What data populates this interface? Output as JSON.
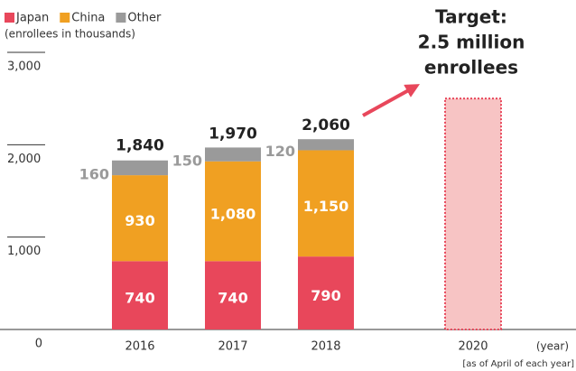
{
  "chart_data": {
    "type": "bar",
    "stacked": true,
    "unit_label": "(enrollees in thousands)",
    "x_label": "(year)",
    "footnote": "[as of April of each year]",
    "categories": [
      "2016",
      "2017",
      "2018",
      "2020"
    ],
    "series": [
      {
        "name": "Japan",
        "color": "#e8475b",
        "values": [
          740,
          740,
          790,
          null
        ]
      },
      {
        "name": "China",
        "color": "#f0a022",
        "values": [
          930,
          1080,
          1150,
          null
        ],
        "value_labels": [
          "930",
          "1,080",
          "1,150",
          null
        ]
      },
      {
        "name": "Other",
        "color": "#9a9a9a",
        "values": [
          160,
          150,
          120,
          null
        ]
      }
    ],
    "totals": {
      "values": [
        1840,
        1970,
        2060,
        null
      ],
      "value_labels": [
        "1,840",
        "1,970",
        "2,060",
        null
      ]
    },
    "target": {
      "category": "2020",
      "value": 2500,
      "color": "#f7c4c4",
      "border": "#e8475b"
    },
    "annotation": [
      "Target:",
      "2.5 million",
      "enrollees"
    ],
    "ylim": [
      0,
      3000
    ],
    "yticks": [
      0,
      {
        "value": 1000,
        "label": "1,000"
      },
      {
        "value": 2000,
        "label": "2,000"
      },
      {
        "value": 3000,
        "label": "3,000"
      }
    ]
  }
}
